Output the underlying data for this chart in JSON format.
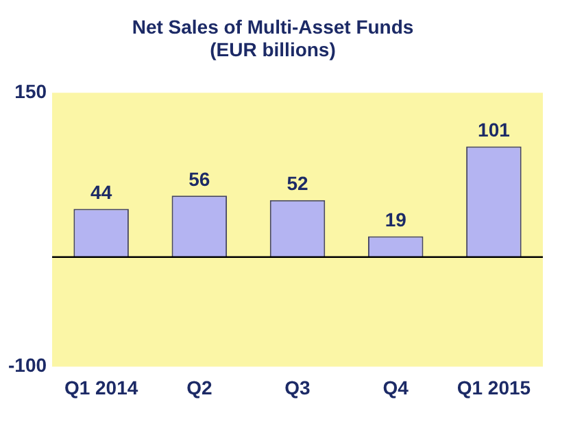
{
  "chart_data": {
    "type": "bar",
    "title": "Net Sales of Multi-Asset Funds\n(EUR billions)",
    "categories": [
      "Q1 2014",
      "Q2",
      "Q3",
      "Q4",
      "Q1 2015"
    ],
    "values": [
      44,
      56,
      52,
      19,
      101
    ],
    "color": "#b4b4f2",
    "ylim": [
      -100,
      150
    ],
    "yticks": [
      -100,
      150
    ],
    "grid": false,
    "legend": false,
    "data_labels": true,
    "ref_lines": [
      {
        "axis": "y",
        "value": 0,
        "color": "#000000"
      }
    ]
  }
}
